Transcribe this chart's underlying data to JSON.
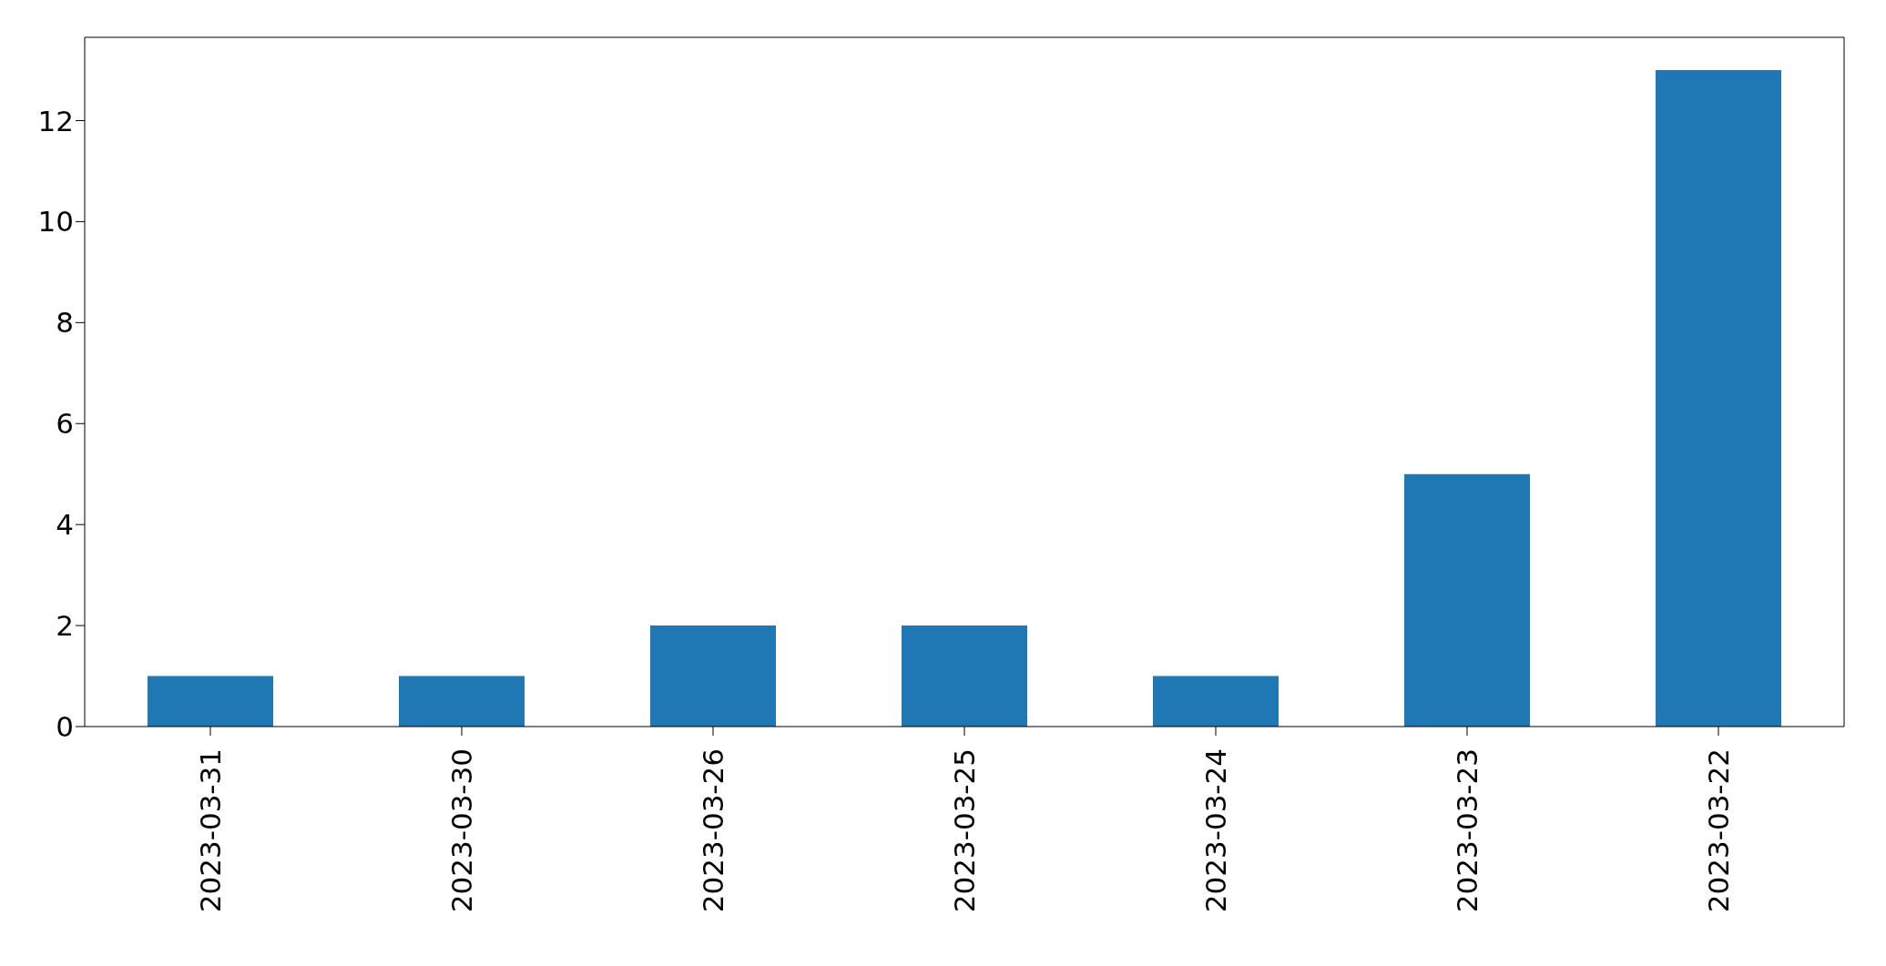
{
  "chart_data": {
    "type": "bar",
    "categories": [
      "2023-03-31",
      "2023-03-30",
      "2023-03-26",
      "2023-03-25",
      "2023-03-24",
      "2023-03-23",
      "2023-03-22"
    ],
    "values": [
      1,
      1,
      2,
      2,
      1,
      5,
      13
    ],
    "color": "#1f77b4",
    "ylim": [
      0,
      13.65
    ],
    "yticks": [
      0,
      2,
      4,
      6,
      8,
      10,
      12
    ],
    "grid": false
  }
}
